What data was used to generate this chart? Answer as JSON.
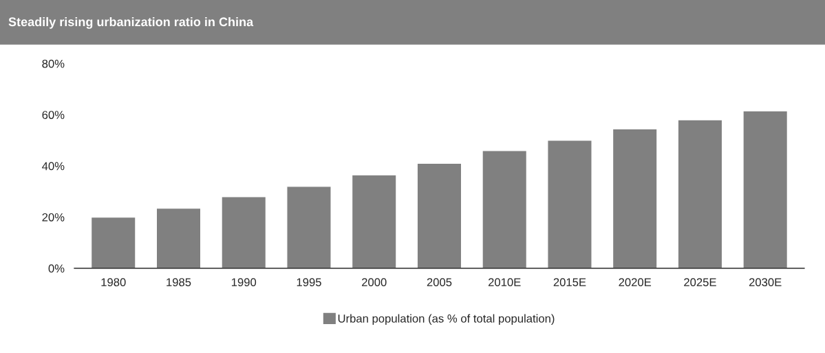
{
  "chart_data": {
    "type": "bar",
    "title": "Steadily rising urbanization ratio in China",
    "categories": [
      "1980",
      "1985",
      "1990",
      "1995",
      "2000",
      "2005",
      "2010E",
      "2015E",
      "2020E",
      "2025E",
      "2030E"
    ],
    "series": [
      {
        "name": "Urban population (as % of total population)",
        "color": "#808080",
        "values": [
          20,
          23.5,
          28,
          32,
          36.5,
          41,
          46,
          50,
          54.5,
          58,
          61.5
        ]
      }
    ],
    "ylim": [
      0,
      80
    ],
    "yticks": [
      {
        "value": 0,
        "label": "0%"
      },
      {
        "value": 20,
        "label": "20%"
      },
      {
        "value": 40,
        "label": "40%"
      },
      {
        "value": 60,
        "label": "60%"
      },
      {
        "value": 80,
        "label": "80%"
      }
    ],
    "grid": false,
    "legend": "bottom"
  }
}
